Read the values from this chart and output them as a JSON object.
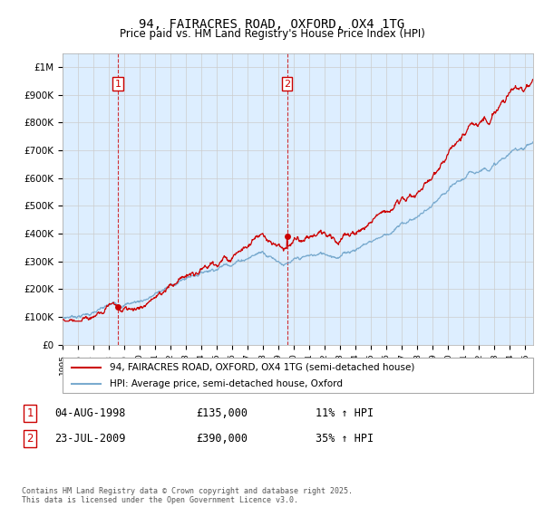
{
  "title": "94, FAIRACRES ROAD, OXFORD, OX4 1TG",
  "subtitle": "Price paid vs. HM Land Registry's House Price Index (HPI)",
  "ylabel_ticks": [
    "£0",
    "£100K",
    "£200K",
    "£300K",
    "£400K",
    "£500K",
    "£600K",
    "£700K",
    "£800K",
    "£900K",
    "£1M"
  ],
  "ytick_values": [
    0,
    100000,
    200000,
    300000,
    400000,
    500000,
    600000,
    700000,
    800000,
    900000,
    1000000
  ],
  "ylim": [
    0,
    1050000
  ],
  "xlim_start": 1995.0,
  "xlim_end": 2025.5,
  "sale1_date": 1998.58,
  "sale1_price": 135000,
  "sale1_label": "1",
  "sale2_date": 2009.55,
  "sale2_price": 390000,
  "sale2_label": "2",
  "sale_color": "#cc0000",
  "house_line_color": "#cc0000",
  "hpi_line_color": "#7aabcf",
  "chart_bg_color": "#ddeeff",
  "background_color": "#ffffff",
  "grid_color": "#cccccc",
  "legend_house": "94, FAIRACRES ROAD, OXFORD, OX4 1TG (semi-detached house)",
  "legend_hpi": "HPI: Average price, semi-detached house, Oxford",
  "note1_label": "1",
  "note1_date": "04-AUG-1998",
  "note1_price": "£135,000",
  "note1_hpi": "11% ↑ HPI",
  "note2_label": "2",
  "note2_date": "23-JUL-2009",
  "note2_price": "£390,000",
  "note2_hpi": "35% ↑ HPI",
  "footer": "Contains HM Land Registry data © Crown copyright and database right 2025.\nThis data is licensed under the Open Government Licence v3.0."
}
